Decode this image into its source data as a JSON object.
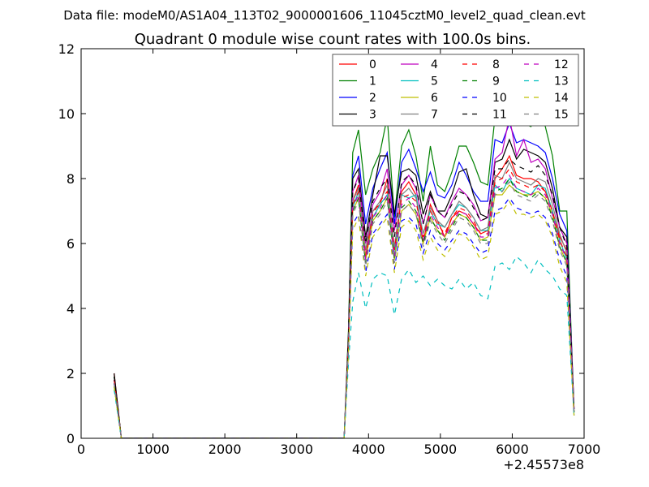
{
  "header": {
    "suptitle": "Data file: modeM0/AS1A04_113T02_9000001606_11045cztM0_level2_quad_clean.evt"
  },
  "chart_data": {
    "type": "line",
    "title": "Quadrant 0 module wise count rates with 100.0s bins.",
    "xlabel": "",
    "ylabel": "",
    "x_offset_label": "+2.45573e8",
    "xlim": [
      0,
      7000
    ],
    "ylim": [
      0,
      12
    ],
    "xticks": [
      0,
      1000,
      2000,
      3000,
      4000,
      5000,
      6000,
      7000
    ],
    "xtick_labels": [
      "0",
      "1000",
      "2000",
      "3000",
      "4000",
      "5000",
      "6000",
      "7000"
    ],
    "yticks": [
      0,
      2,
      4,
      6,
      8,
      10,
      12
    ],
    "ytick_labels": [
      "0",
      "2",
      "4",
      "6",
      "8",
      "10",
      "12"
    ],
    "grid": false,
    "legend_position": "top-right",
    "x": [
      460,
      560,
      3660,
      3720,
      3780,
      3860,
      3960,
      4060,
      4160,
      4260,
      4360,
      4460,
      4560,
      4660,
      4760,
      4860,
      4960,
      5060,
      5160,
      5260,
      5360,
      5460,
      5560,
      5660,
      5760,
      5860,
      5960,
      6060,
      6160,
      6260,
      6360,
      6460,
      6560,
      6660,
      6760,
      6860
    ],
    "series": [
      {
        "name": "0",
        "color": "#ff0000",
        "dash": "solid",
        "values": [
          2.0,
          0.0,
          0.0,
          3.0,
          7.3,
          7.8,
          5.6,
          7.0,
          7.2,
          8.0,
          5.8,
          7.6,
          7.9,
          7.5,
          6.0,
          7.2,
          6.7,
          6.2,
          6.8,
          7.0,
          6.9,
          6.6,
          6.3,
          6.4,
          8.0,
          8.3,
          8.7,
          8.1,
          8.0,
          8.0,
          7.9,
          7.6,
          7.0,
          6.2,
          5.8,
          0.9
        ]
      },
      {
        "name": "1",
        "color": "#008000",
        "dash": "solid",
        "values": [
          1.9,
          0.0,
          0.0,
          3.3,
          8.8,
          9.5,
          7.5,
          8.3,
          8.8,
          9.9,
          6.8,
          9.0,
          9.5,
          8.7,
          7.3,
          9.0,
          7.8,
          7.6,
          8.2,
          9.0,
          9.0,
          8.5,
          7.9,
          7.8,
          9.9,
          9.8,
          10.1,
          9.9,
          9.7,
          9.6,
          10.0,
          9.6,
          8.7,
          7.0,
          7.0,
          0.8
        ]
      },
      {
        "name": "2",
        "color": "#0000ff",
        "dash": "solid",
        "values": [
          1.8,
          0.0,
          0.0,
          3.1,
          8.1,
          8.7,
          6.6,
          7.7,
          8.3,
          8.8,
          6.6,
          8.5,
          8.9,
          8.3,
          7.6,
          8.2,
          7.5,
          7.4,
          7.8,
          8.5,
          8.1,
          7.6,
          7.3,
          7.3,
          9.2,
          9.1,
          9.7,
          9.1,
          9.2,
          9.1,
          9.0,
          8.8,
          8.0,
          6.9,
          6.4,
          0.9
        ]
      },
      {
        "name": "3",
        "color": "#000000",
        "dash": "solid",
        "values": [
          2.0,
          0.0,
          0.0,
          3.2,
          8.0,
          8.3,
          6.2,
          7.5,
          8.7,
          8.7,
          6.9,
          8.2,
          8.3,
          8.1,
          6.9,
          7.6,
          7.0,
          7.0,
          7.5,
          8.2,
          8.3,
          7.5,
          6.9,
          6.8,
          8.5,
          8.6,
          9.2,
          8.6,
          8.9,
          8.8,
          8.7,
          8.5,
          7.7,
          6.5,
          6.2,
          0.9
        ]
      },
      {
        "name": "4",
        "color": "#bf00bf",
        "dash": "solid",
        "values": [
          1.7,
          0.0,
          0.0,
          3.0,
          7.6,
          8.1,
          6.0,
          7.2,
          7.6,
          8.3,
          6.4,
          7.8,
          8.1,
          7.7,
          6.6,
          7.5,
          7.0,
          6.8,
          7.3,
          7.7,
          7.5,
          7.2,
          6.7,
          6.8,
          8.6,
          8.8,
          9.9,
          8.7,
          9.2,
          8.5,
          8.6,
          8.3,
          7.4,
          6.5,
          6.0,
          0.9
        ]
      },
      {
        "name": "5",
        "color": "#00bfbf",
        "dash": "solid",
        "values": [
          1.6,
          0.0,
          0.0,
          2.9,
          7.1,
          7.6,
          5.5,
          6.8,
          7.2,
          7.5,
          5.6,
          7.5,
          7.4,
          7.5,
          6.3,
          7.0,
          6.6,
          6.5,
          6.9,
          7.2,
          7.1,
          6.8,
          6.4,
          6.4,
          7.8,
          7.6,
          8.0,
          7.7,
          7.6,
          7.5,
          7.8,
          7.7,
          7.0,
          6.1,
          5.5,
          0.8
        ]
      },
      {
        "name": "6",
        "color": "#bfbf00",
        "dash": "solid",
        "values": [
          1.6,
          0.0,
          0.0,
          2.8,
          7.0,
          7.4,
          5.5,
          6.7,
          7.0,
          7.4,
          5.5,
          7.0,
          7.2,
          6.9,
          6.0,
          6.8,
          6.4,
          6.2,
          6.6,
          6.9,
          6.8,
          6.5,
          6.1,
          6.2,
          7.5,
          7.5,
          7.8,
          7.6,
          7.5,
          7.5,
          7.6,
          7.4,
          6.9,
          5.9,
          5.4,
          0.8
        ]
      },
      {
        "name": "7",
        "color": "#808080",
        "dash": "solid",
        "values": [
          1.7,
          0.0,
          0.0,
          2.9,
          7.3,
          7.7,
          5.8,
          7.0,
          7.3,
          7.8,
          5.9,
          7.5,
          7.7,
          7.4,
          6.3,
          7.1,
          6.7,
          6.5,
          6.9,
          7.3,
          7.1,
          6.8,
          6.4,
          6.5,
          8.1,
          8.0,
          8.5,
          8.0,
          7.9,
          7.8,
          8.0,
          7.9,
          7.2,
          6.3,
          5.7,
          0.8
        ]
      },
      {
        "name": "8",
        "color": "#ff0000",
        "dash": "dashed",
        "values": [
          1.8,
          0.0,
          0.0,
          3.0,
          7.2,
          7.6,
          5.6,
          6.9,
          7.3,
          7.6,
          5.8,
          7.4,
          7.5,
          7.3,
          6.2,
          7.0,
          6.6,
          6.3,
          6.8,
          7.1,
          7.0,
          6.7,
          6.3,
          6.3,
          7.9,
          8.0,
          8.3,
          7.9,
          7.8,
          7.7,
          7.8,
          7.6,
          7.0,
          6.1,
          5.6,
          0.8
        ]
      },
      {
        "name": "9",
        "color": "#008000",
        "dash": "dashed",
        "values": [
          1.7,
          0.0,
          0.0,
          2.9,
          7.0,
          7.4,
          5.4,
          6.7,
          7.0,
          7.4,
          5.5,
          7.1,
          7.3,
          7.0,
          6.0,
          6.8,
          6.4,
          6.1,
          6.5,
          6.9,
          6.8,
          6.5,
          6.1,
          6.1,
          7.6,
          7.7,
          8.0,
          7.6,
          7.5,
          7.4,
          7.6,
          7.4,
          6.8,
          5.9,
          5.4,
          0.8
        ]
      },
      {
        "name": "10",
        "color": "#0000ff",
        "dash": "dashed",
        "values": [
          1.7,
          0.0,
          0.0,
          2.7,
          6.6,
          6.9,
          5.1,
          6.3,
          6.6,
          6.9,
          5.2,
          6.7,
          6.8,
          6.6,
          5.7,
          6.4,
          6.0,
          5.8,
          6.1,
          6.4,
          6.3,
          6.0,
          5.7,
          5.8,
          7.0,
          7.1,
          7.4,
          7.1,
          7.0,
          6.9,
          7.0,
          6.8,
          6.3,
          5.5,
          5.0,
          0.7
        ]
      },
      {
        "name": "11",
        "color": "#000000",
        "dash": "dashed",
        "values": [
          1.9,
          0.0,
          0.0,
          3.1,
          7.6,
          8.0,
          6.0,
          7.3,
          7.7,
          8.0,
          6.2,
          7.9,
          8.1,
          7.8,
          6.6,
          7.5,
          7.0,
          6.8,
          7.2,
          7.6,
          7.5,
          7.1,
          6.7,
          6.8,
          8.3,
          8.3,
          8.6,
          8.4,
          8.3,
          8.2,
          8.4,
          8.1,
          7.5,
          6.5,
          5.9,
          0.9
        ]
      },
      {
        "name": "12",
        "color": "#bf00bf",
        "dash": "dashed",
        "values": [
          1.7,
          0.0,
          0.0,
          2.9,
          7.1,
          7.5,
          5.5,
          6.8,
          7.1,
          7.5,
          5.6,
          7.2,
          7.4,
          7.1,
          6.1,
          6.9,
          6.5,
          6.2,
          6.6,
          7.0,
          6.9,
          6.6,
          6.2,
          6.2,
          7.7,
          7.8,
          8.1,
          7.7,
          7.6,
          7.5,
          7.7,
          7.5,
          6.9,
          6.0,
          5.5,
          0.8
        ]
      },
      {
        "name": "13",
        "color": "#00bfbf",
        "dash": "dashed",
        "values": [
          1.5,
          0.0,
          0.0,
          2.3,
          4.2,
          5.1,
          4.0,
          4.9,
          5.1,
          5.0,
          3.8,
          4.9,
          5.2,
          4.8,
          5.0,
          4.7,
          4.9,
          4.7,
          4.6,
          4.9,
          4.6,
          4.8,
          4.4,
          4.3,
          5.3,
          5.4,
          5.2,
          5.6,
          5.4,
          5.1,
          5.5,
          5.2,
          5.0,
          4.6,
          4.4,
          0.7
        ]
      },
      {
        "name": "14",
        "color": "#bfbf00",
        "dash": "dashed",
        "values": [
          1.6,
          0.0,
          0.0,
          2.6,
          6.4,
          6.8,
          5.0,
          6.2,
          6.5,
          6.8,
          5.1,
          6.5,
          6.7,
          6.4,
          5.5,
          6.2,
          5.8,
          5.6,
          5.9,
          6.3,
          6.2,
          5.9,
          5.5,
          5.6,
          6.9,
          7.0,
          7.3,
          6.9,
          6.9,
          6.8,
          6.9,
          6.7,
          6.2,
          5.3,
          4.8,
          0.7
        ]
      },
      {
        "name": "15",
        "color": "#808080",
        "dash": "dashed",
        "values": [
          1.7,
          0.0,
          0.0,
          2.8,
          6.9,
          7.3,
          5.3,
          6.6,
          6.9,
          7.3,
          5.4,
          7.0,
          7.2,
          6.9,
          5.9,
          6.7,
          6.3,
          6.0,
          6.4,
          6.8,
          6.7,
          6.4,
          6.0,
          6.0,
          7.5,
          7.6,
          7.9,
          7.5,
          7.4,
          7.3,
          7.5,
          7.3,
          6.7,
          5.8,
          5.3,
          0.8
        ]
      }
    ]
  }
}
